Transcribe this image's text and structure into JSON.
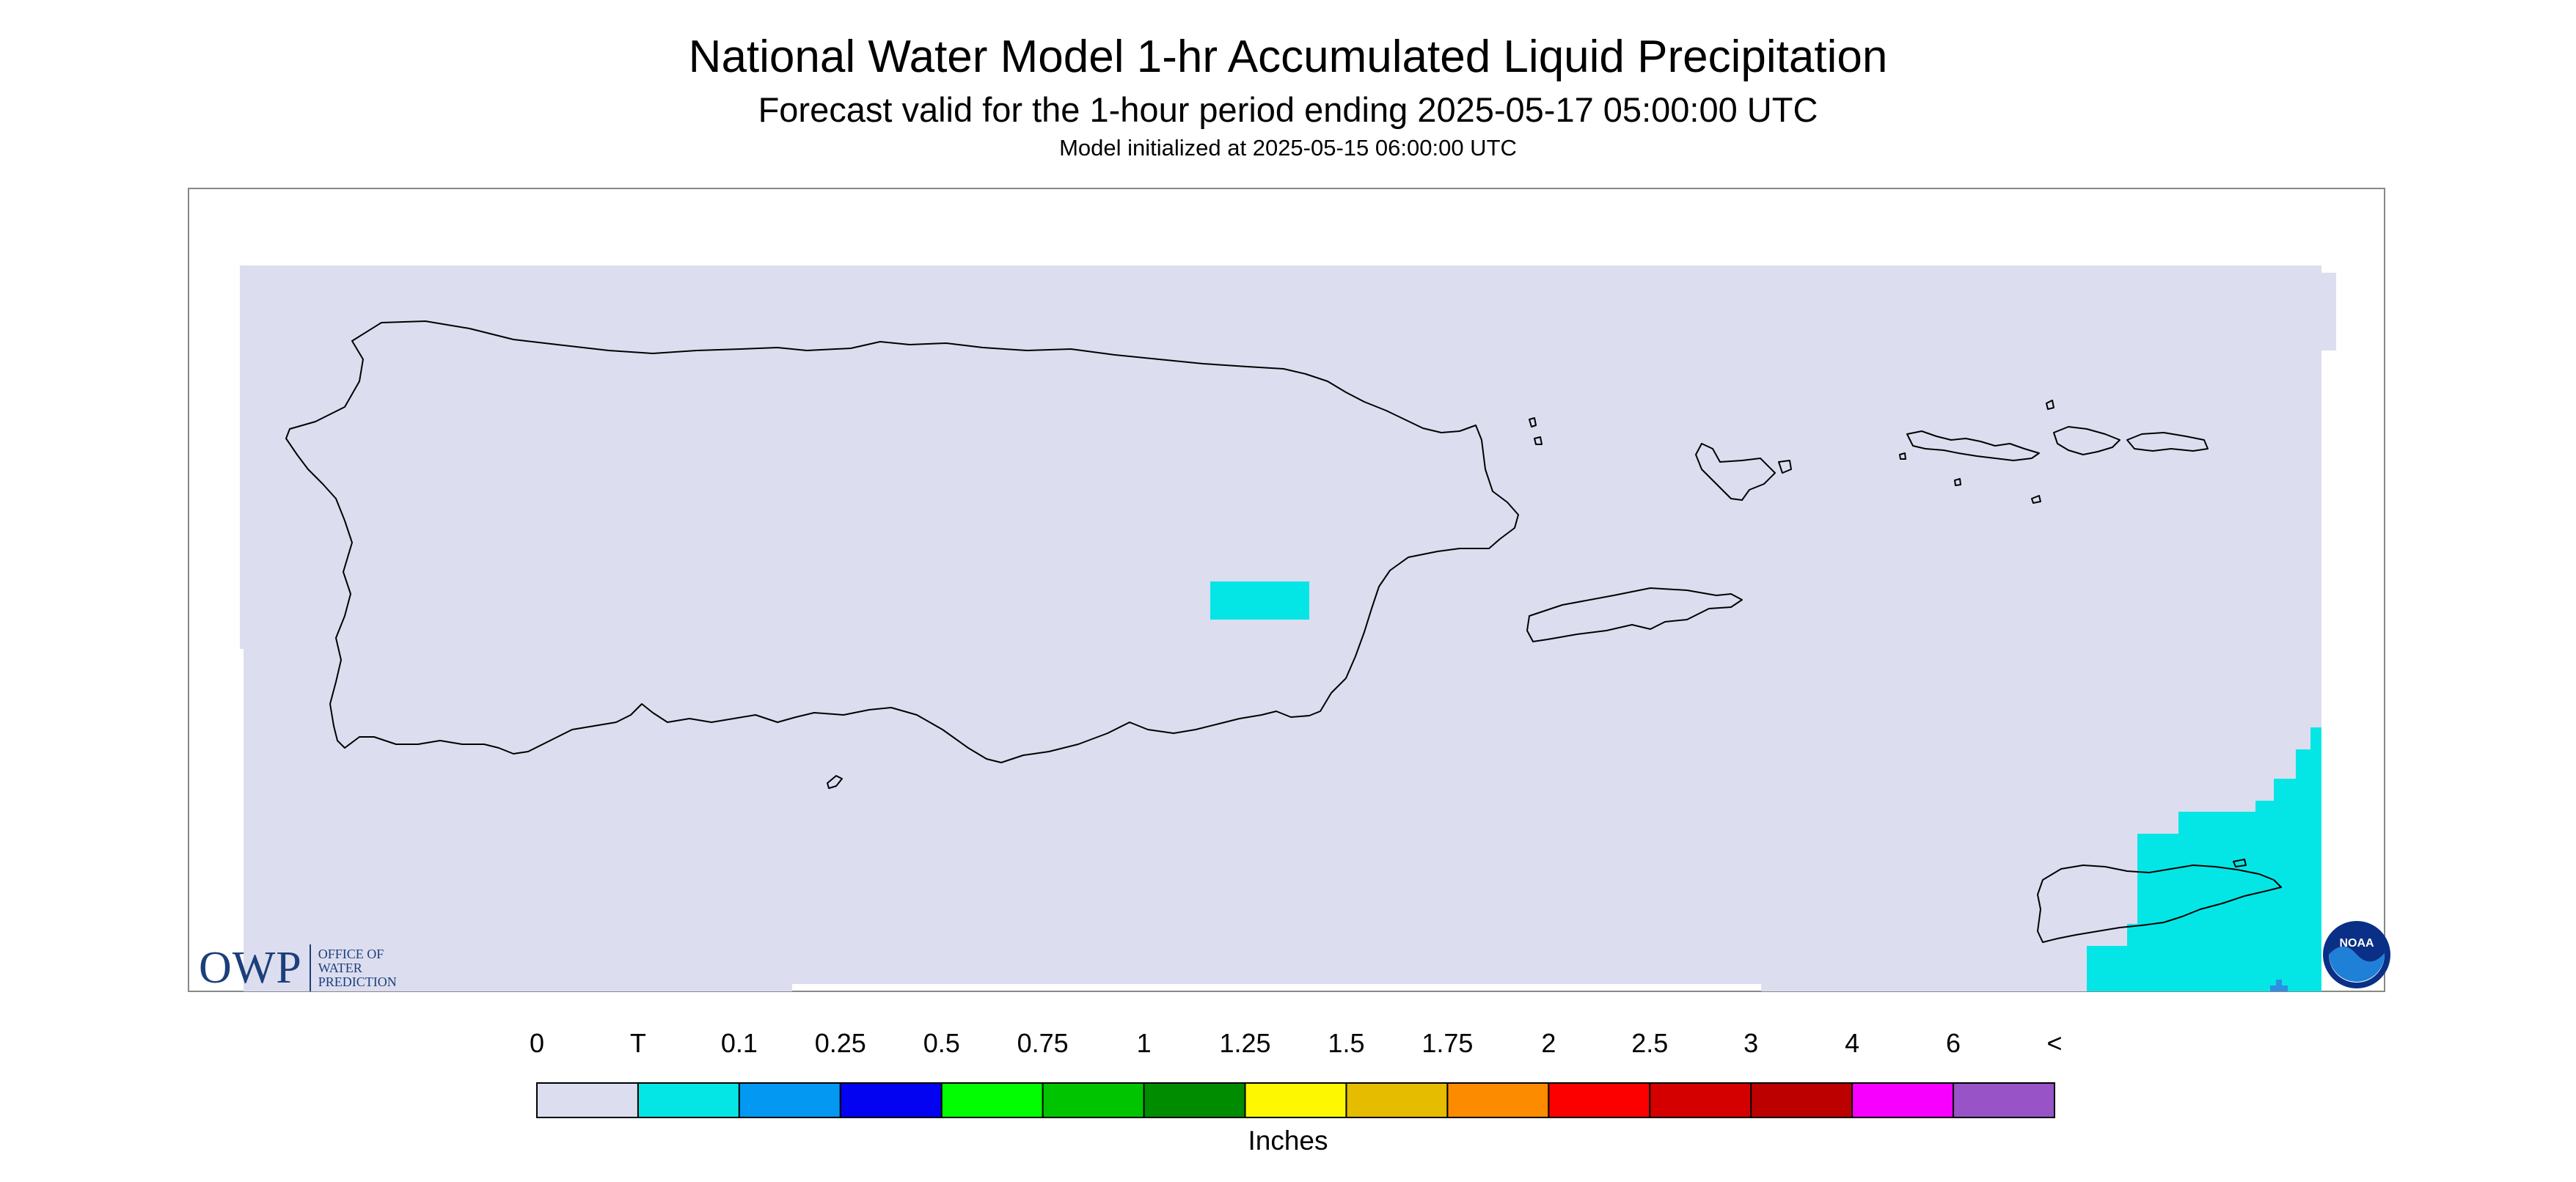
{
  "title": "National Water Model 1-hr Accumulated Liquid Precipitation",
  "subtitle": "Forecast valid for the 1-hour period ending 2025-05-17 05:00:00 UTC",
  "init": "Model initialized at 2025-05-15 06:00:00 UTC",
  "logo": {
    "letters": "OWP",
    "line1": "OFFICE OF",
    "line2": "WATER",
    "line3": "PREDICTION"
  },
  "noaa_logo_text": "NOAA",
  "legend": {
    "units": "Inches",
    "labels": [
      "0",
      "T",
      "0.1",
      "0.25",
      "0.5",
      "0.75",
      "1",
      "1.25",
      "1.5",
      "1.75",
      "2",
      "2.5",
      "3",
      "4",
      "6",
      "<"
    ],
    "colors": [
      "#dcddef",
      "#04e6e6",
      "#0398f1",
      "#0303f1",
      "#02fd02",
      "#01c401",
      "#008c00",
      "#fdf802",
      "#e5bc00",
      "#fc8b00",
      "#fc0000",
      "#d40000",
      "#bc0000",
      "#f700fd",
      "#9854c6"
    ]
  },
  "colors": {
    "no_precip_fill": "#dcddef",
    "trace_fill": "#04e6e6",
    "coastline": "#000000",
    "frame": "#888888"
  }
}
